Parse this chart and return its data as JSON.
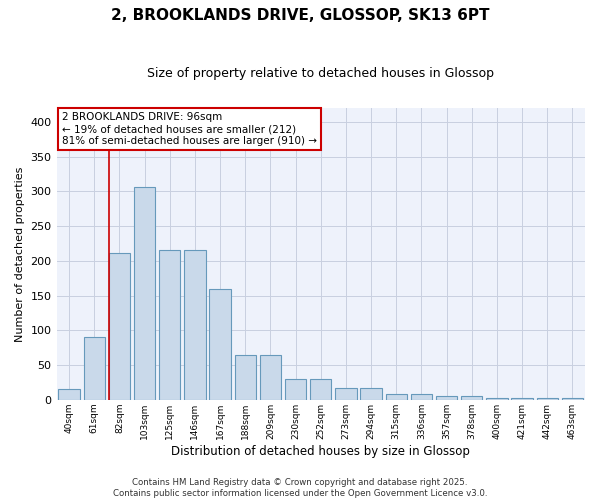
{
  "title": "2, BROOKLANDS DRIVE, GLOSSOP, SK13 6PT",
  "subtitle": "Size of property relative to detached houses in Glossop",
  "xlabel": "Distribution of detached houses by size in Glossop",
  "ylabel": "Number of detached properties",
  "categories": [
    "40sqm",
    "61sqm",
    "82sqm",
    "103sqm",
    "125sqm",
    "146sqm",
    "167sqm",
    "188sqm",
    "209sqm",
    "230sqm",
    "252sqm",
    "273sqm",
    "294sqm",
    "315sqm",
    "336sqm",
    "357sqm",
    "378sqm",
    "400sqm",
    "421sqm",
    "442sqm",
    "463sqm"
  ],
  "values": [
    15,
    90,
    212,
    307,
    215,
    215,
    160,
    65,
    65,
    30,
    30,
    17,
    17,
    8,
    8,
    5,
    5,
    3,
    3,
    3,
    3
  ],
  "bar_color": "#c9d9ea",
  "bar_edge_color": "#6699bb",
  "redline_index": 2,
  "annotation_title": "2 BROOKLANDS DRIVE: 96sqm",
  "annotation_line1": "← 19% of detached houses are smaller (212)",
  "annotation_line2": "81% of semi-detached houses are larger (910) →",
  "ylim": [
    0,
    420
  ],
  "yticks": [
    0,
    50,
    100,
    150,
    200,
    250,
    300,
    350,
    400
  ],
  "copyright_text": "Contains HM Land Registry data © Crown copyright and database right 2025.\nContains public sector information licensed under the Open Government Licence v3.0.",
  "bg_color": "#ffffff",
  "plot_bg_color": "#eef2fb",
  "grid_color": "#c8cfe0",
  "annotation_box_facecolor": "#ffffff",
  "annotation_box_edgecolor": "#cc0000",
  "redline_color": "#cc0000",
  "title_fontsize": 11,
  "subtitle_fontsize": 9,
  "ylabel_fontsize": 8,
  "xlabel_fontsize": 8.5
}
